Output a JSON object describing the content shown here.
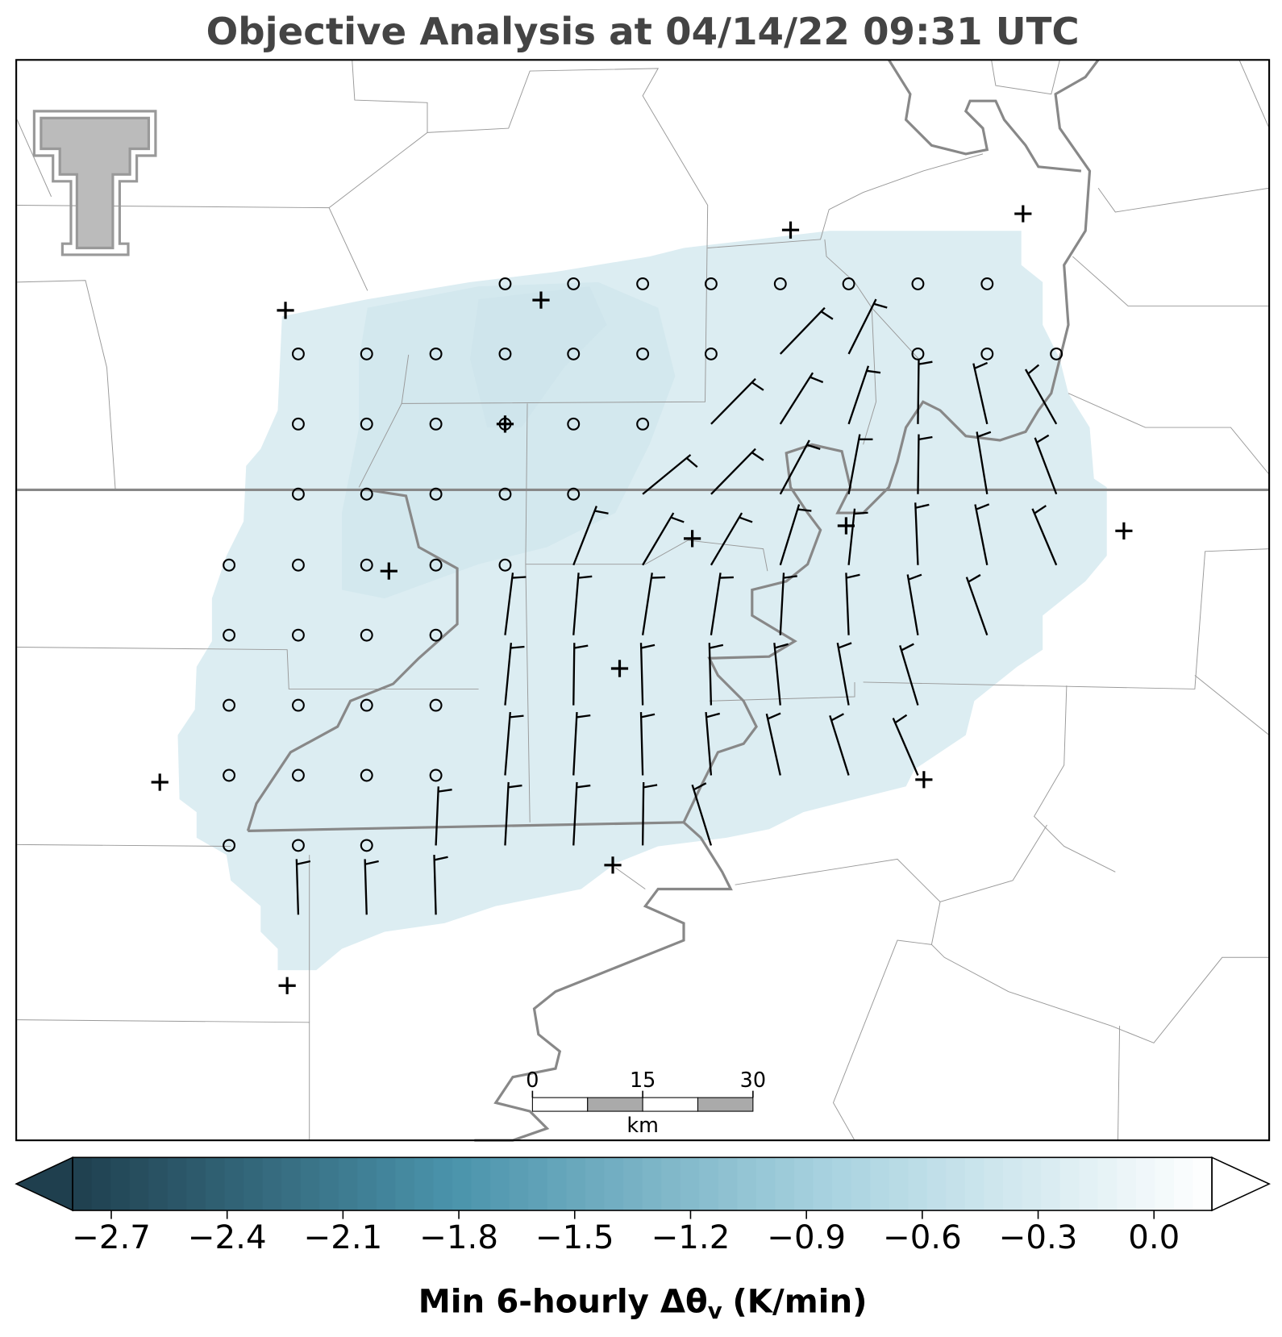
{
  "header": {
    "title": "Objective Analysis at 04/14/22 09:31 UTC"
  },
  "scale_bar": {
    "ticks": [
      0,
      15,
      30
    ],
    "unit": "km"
  },
  "colorbar": {
    "clim": [
      -2.8,
      0.15
    ],
    "colors": [
      "#1f3f4e",
      "#4a93ab",
      "#a9d3e0",
      "#ffffff"
    ],
    "ticks": [
      {
        "value": -2.7,
        "label": "−2.7"
      },
      {
        "value": -2.4,
        "label": "−2.4"
      },
      {
        "value": -2.1,
        "label": "−2.1"
      },
      {
        "value": -1.8,
        "label": "−1.8"
      },
      {
        "value": -1.5,
        "label": "−1.5"
      },
      {
        "value": -1.2,
        "label": "−1.2"
      },
      {
        "value": -0.9,
        "label": "−0.9"
      },
      {
        "value": -0.6,
        "label": "−0.6"
      },
      {
        "value": -0.3,
        "label": "−0.3"
      },
      {
        "value": 0,
        "label": "0.0"
      }
    ],
    "label_main": "Min 6-hourly Δθ",
    "label_sub": "v",
    "label_unit": "(K/min)"
  }
}
